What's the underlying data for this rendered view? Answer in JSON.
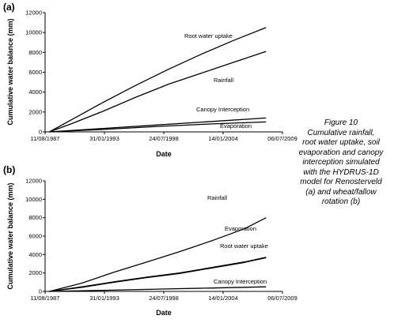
{
  "caption": {
    "number": "Figure 10",
    "lines": [
      "Cumulative rainfall,",
      "root water uptake, soil",
      "evaporation and canopy",
      "interception simulated",
      "with the HYDRUS-1D",
      "model for Renosterveld",
      "(a) and wheat/fallow",
      "rotation (b)"
    ]
  },
  "chart_data": [
    {
      "type": "line",
      "panel_label": "(a)",
      "xlabel": "Date",
      "ylabel": "Cumulative water balance (mm)",
      "x_ticks": [
        "11/08/1987",
        "31/01/1993",
        "24/07/1998",
        "14/01/2004",
        "06/07/2009"
      ],
      "x_range": [
        "1987-08-11",
        "2009-07-06"
      ],
      "ylim": [
        0,
        12000
      ],
      "y_ticks": [
        0,
        2000,
        4000,
        6000,
        8000,
        10000,
        12000
      ],
      "grid": false,
      "legend": "none",
      "series": [
        {
          "name": "Root water uptake",
          "color": "#000000",
          "x": [
            "1988-01-01",
            "1990-01-01",
            "1993-01-01",
            "1996-01-01",
            "1999-01-01",
            "2002-01-01",
            "2005-01-01",
            "2008-01-01"
          ],
          "y": [
            0,
            1200,
            3000,
            4700,
            6300,
            7800,
            9200,
            10500
          ]
        },
        {
          "name": "Rainfall",
          "color": "#000000",
          "x": [
            "1988-01-01",
            "1990-01-01",
            "1993-01-01",
            "1996-01-01",
            "1999-01-01",
            "2002-01-01",
            "2005-01-01",
            "2008-01-01"
          ],
          "y": [
            0,
            800,
            2100,
            3500,
            4800,
            5900,
            7000,
            8100
          ]
        },
        {
          "name": "Canopy Interception",
          "color": "#000000",
          "x": [
            "1988-01-01",
            "1993-01-01",
            "1998-01-01",
            "2003-01-01",
            "2008-01-01"
          ],
          "y": [
            0,
            350,
            700,
            1050,
            1400
          ]
        },
        {
          "name": "Evaporation",
          "color": "#000000",
          "x": [
            "1988-01-01",
            "1993-01-01",
            "1998-01-01",
            "2003-01-01",
            "2008-01-01"
          ],
          "y": [
            0,
            250,
            550,
            800,
            1000
          ]
        }
      ]
    },
    {
      "type": "line",
      "panel_label": "(b)",
      "xlabel": "Date",
      "ylabel": "Cumulative water balance (mm)",
      "x_ticks": [
        "11/08/1987",
        "31/01/1993",
        "24/07/1998",
        "14/01/2004",
        "06/07/2009"
      ],
      "x_range": [
        "1987-08-11",
        "2009-07-06"
      ],
      "ylim": [
        0,
        12000
      ],
      "y_ticks": [
        0,
        2000,
        4000,
        6000,
        8000,
        10000,
        12000
      ],
      "grid": false,
      "legend": "none",
      "series": [
        {
          "name": "Rainfall",
          "color": "#000000",
          "x": [
            "1988-01-01",
            "1991-01-01",
            "1994-01-01",
            "1997-01-01",
            "2000-01-01",
            "2003-01-01",
            "2006-01-01",
            "2008-01-01"
          ],
          "y": [
            0,
            900,
            2100,
            3200,
            4300,
            5500,
            6800,
            8000
          ]
        },
        {
          "name": "Evaporation",
          "color": "#000000",
          "x": [
            "1988-01-01",
            "1991-01-01",
            "1994-01-01",
            "1997-01-01",
            "2000-01-01",
            "2003-01-01",
            "2006-01-01",
            "2008-01-01"
          ],
          "y": [
            0,
            500,
            1050,
            1550,
            2000,
            2600,
            3200,
            3700
          ]
        },
        {
          "name": "Root water uptake",
          "color": "#000000",
          "x": [
            "1988-01-01",
            "1991-01-01",
            "1994-01-01",
            "1997-01-01",
            "2000-01-01",
            "2003-01-01",
            "2006-01-01",
            "2008-01-01"
          ],
          "y": [
            0,
            450,
            1000,
            1500,
            1950,
            2550,
            3150,
            3650
          ]
        },
        {
          "name": "Canopy Interception",
          "color": "#000000",
          "x": [
            "1988-01-01",
            "1993-01-01",
            "1998-01-01",
            "2003-01-01",
            "2008-01-01"
          ],
          "y": [
            0,
            120,
            250,
            370,
            500
          ]
        }
      ]
    }
  ]
}
